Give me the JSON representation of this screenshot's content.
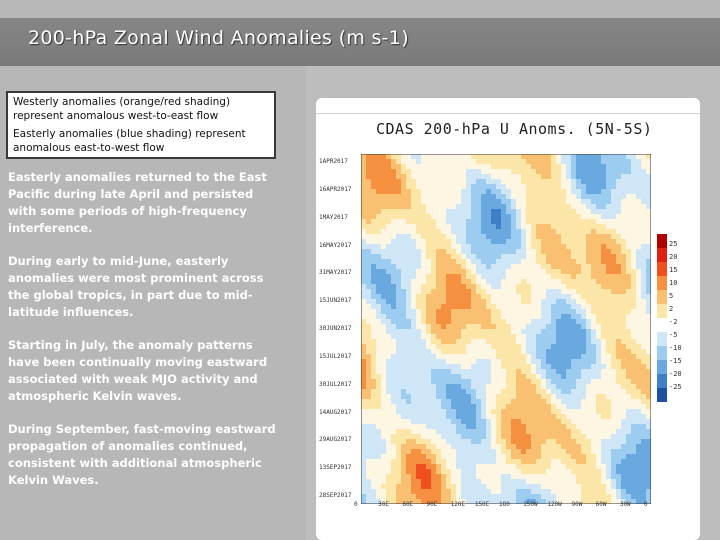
{
  "slide": {
    "title": "200-hPa Zonal Wind Anomalies (m s-1)",
    "legend": {
      "westerly": "Westerly anomalies (orange/red shading) represent anomalous west-to-east flow",
      "easterly": "Easterly anomalies (blue shading) represent anomalous east-to-west flow"
    },
    "paragraphs": [
      "Easterly anomalies returned to the East Pacific during late April and persisted with some periods of high-frequency interference.",
      "During early to mid-June, easterly anomalies were most prominent across the global tropics, in part due to mid-latitude influences.",
      "Starting in July, the anomaly patterns have been continually moving eastward associated with weak MJO activity and atmospheric Kelvin waves.",
      "During September, fast-moving eastward propagation of anomalies continued, consistent with additional atmospheric Kelvin Waves."
    ]
  },
  "figure": {
    "title": "CDAS 200-hPa U Anoms. (5N-5S)",
    "dates": [
      "1APR2017",
      "16APR2017",
      "1MAY2017",
      "16MAY2017",
      "31MAY2017",
      "15JUN2017",
      "30JUN2017",
      "15JUL2017",
      "30JUL2017",
      "14AUG2017",
      "29AUG2017",
      "13SEP2017",
      "28SEP2017"
    ],
    "longitudes": [
      "0",
      "30E",
      "60E",
      "90E",
      "120E",
      "150E",
      "180",
      "150W",
      "120W",
      "90W",
      "60W",
      "30W",
      "0"
    ],
    "colorbar_labels": [
      "25",
      "20",
      "15",
      "10",
      "5",
      "2",
      "-2",
      "-5",
      "-10",
      "-15",
      "-20",
      "-25"
    ],
    "colorbar_colors": [
      "#b00000",
      "#e02010",
      "#f05020",
      "#f59040",
      "#f8c070",
      "#fbe6a8",
      "#ffffff",
      "#cfe6f7",
      "#9cccef",
      "#6aa9e0",
      "#3f7fc8",
      "#1f4fa0"
    ]
  }
}
